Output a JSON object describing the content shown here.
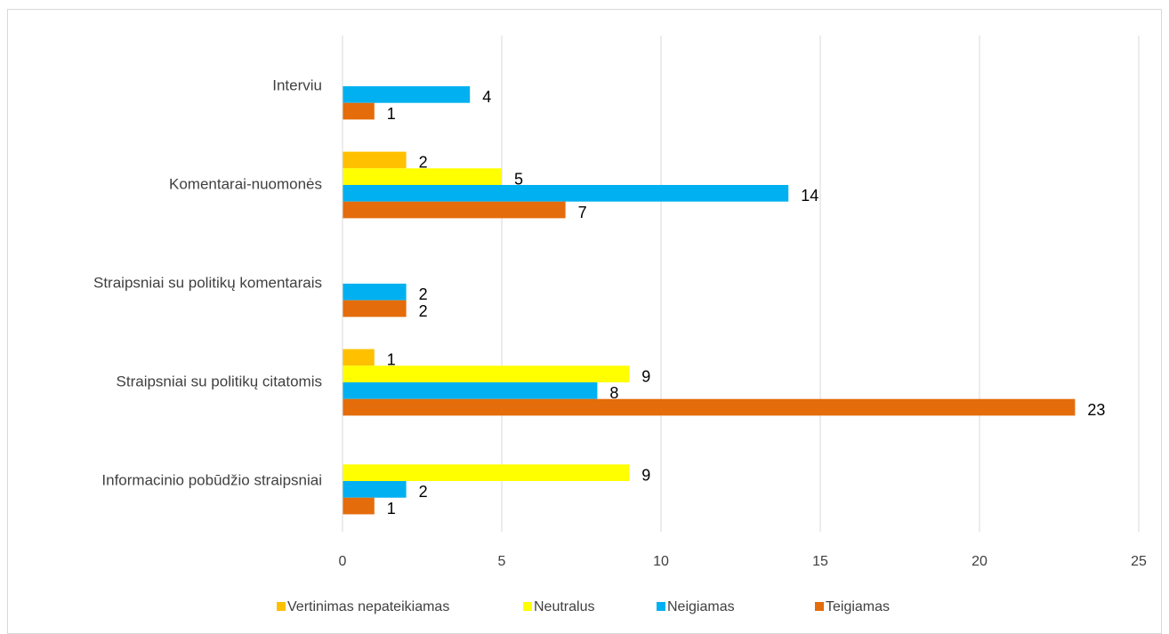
{
  "chart_data": {
    "type": "barh",
    "categories": [
      "Interviu",
      "Komentarai-nuomonės",
      "Straipsniai su politikų komentarais",
      "Straipsniai su politikų citatomis",
      "Informacinio pobūdžio straipsniai"
    ],
    "series": [
      {
        "name": "Vertinimas nepateikiamas",
        "color": "#ffc000",
        "values": [
          null,
          2,
          null,
          1,
          null
        ]
      },
      {
        "name": "Neutralus",
        "color": "#ffff00",
        "values": [
          null,
          5,
          null,
          9,
          9
        ]
      },
      {
        "name": "Neigiamas",
        "color": "#00b0f0",
        "values": [
          4,
          14,
          2,
          8,
          2
        ]
      },
      {
        "name": "Teigiamas",
        "color": "#e46c0a",
        "values": [
          1,
          7,
          2,
          23,
          1
        ]
      }
    ],
    "xlim": [
      0,
      25
    ],
    "xticks": [
      0,
      5,
      10,
      15,
      20,
      25
    ],
    "grid": true,
    "legend": "bottom"
  }
}
